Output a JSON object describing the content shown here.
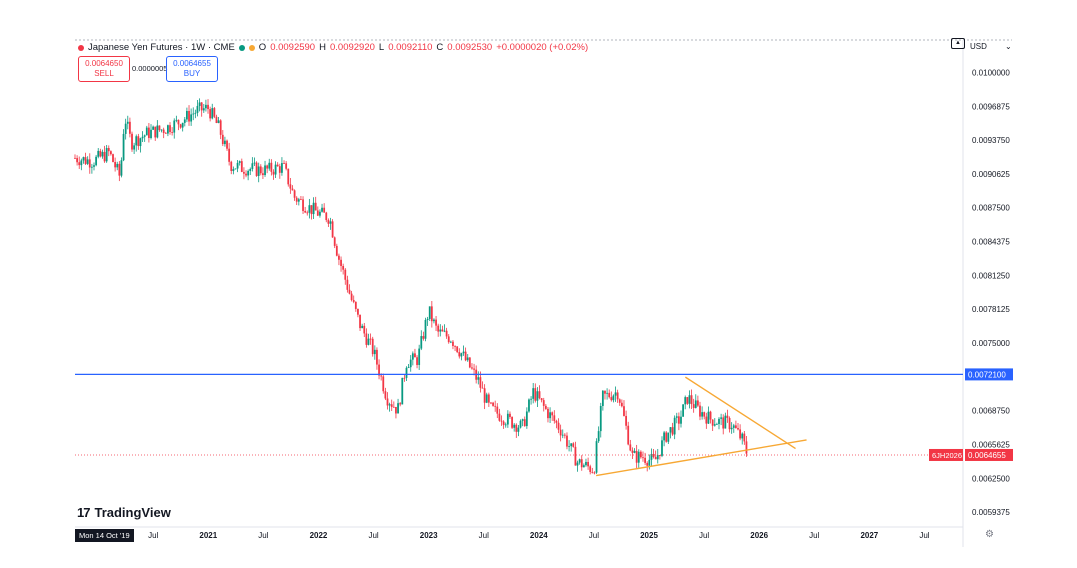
{
  "header": {
    "symbol": "Japanese Yen Futures · 1W · CME",
    "o_label": "O",
    "o": "0.0092590",
    "h_label": "H",
    "h": "0.0092920",
    "l_label": "L",
    "l": "0.0092110",
    "c_label": "C",
    "c": "0.0092530",
    "change": "+0.0000020 (+0.02%)"
  },
  "trade": {
    "sell_price": "0.0064650",
    "sell_label": "SELL",
    "spread": "0.0000005",
    "buy_price": "0.0064655",
    "buy_label": "BUY"
  },
  "currency": "USD",
  "logo_text": "TradingView",
  "date_chip": "Mon 14 Oct '19",
  "colors": {
    "up": "#089981",
    "down": "#f23645",
    "hline": "#2962ff",
    "trend": "#f7a834",
    "bg": "#ffffff"
  },
  "icons": {
    "logo": "tradingview-logo-icon",
    "settings": "gear-icon",
    "collapse": "chevron-icon"
  },
  "chart_data": {
    "type": "candlestick",
    "title": "Japanese Yen Futures · 1W · CME",
    "y_ticks": [
      "0.0100000",
      "0.0096875",
      "0.0093750",
      "0.0090625",
      "0.0087500",
      "0.0084375",
      "0.0081250",
      "0.0078125",
      "0.0075000",
      "0.0068750",
      "0.0065625",
      "0.0062500",
      "0.0059375"
    ],
    "y_tick_values": [
      0.01,
      0.0096875,
      0.009375,
      0.0090625,
      0.00875,
      0.0084375,
      0.008125,
      0.0078125,
      0.0075,
      0.006875,
      0.0065625,
      0.00625,
      0.0059375
    ],
    "ylim": [
      0.0058,
      0.0103
    ],
    "x_ticks": [
      "Jul",
      "2021",
      "Jul",
      "2022",
      "Jul",
      "2023",
      "Jul",
      "2024",
      "Jul",
      "2025",
      "Jul",
      "2026",
      "Jul",
      "2027",
      "Jul"
    ],
    "x_tick_dates": [
      2020.5,
      2021.0,
      2021.5,
      2022.0,
      2022.5,
      2023.0,
      2023.5,
      2024.0,
      2024.5,
      2025.0,
      2025.5,
      2026.0,
      2026.5,
      2027.0,
      2027.5
    ],
    "xlim": [
      2019.79,
      2027.85
    ],
    "price_path": [
      [
        2019.79,
        0.00921
      ],
      [
        2019.95,
        0.00918
      ],
      [
        2020.1,
        0.00926
      ],
      [
        2020.2,
        0.00903
      ],
      [
        2020.24,
        0.0096
      ],
      [
        2020.3,
        0.00935
      ],
      [
        2020.45,
        0.00944
      ],
      [
        2020.6,
        0.00948
      ],
      [
        2020.75,
        0.00955
      ],
      [
        2020.9,
        0.00965
      ],
      [
        2021.0,
        0.00967
      ],
      [
        2021.1,
        0.00948
      ],
      [
        2021.2,
        0.00915
      ],
      [
        2021.3,
        0.00912
      ],
      [
        2021.45,
        0.0091
      ],
      [
        2021.55,
        0.0091
      ],
      [
        2021.68,
        0.00913
      ],
      [
        2021.78,
        0.00885
      ],
      [
        2021.9,
        0.00876
      ],
      [
        2022.0,
        0.0087
      ],
      [
        2022.1,
        0.00866
      ],
      [
        2022.18,
        0.0083
      ],
      [
        2022.3,
        0.0079
      ],
      [
        2022.38,
        0.00766
      ],
      [
        2022.5,
        0.00742
      ],
      [
        2022.62,
        0.007
      ],
      [
        2022.72,
        0.00688
      ],
      [
        2022.8,
        0.00733
      ],
      [
        2022.9,
        0.00735
      ],
      [
        2023.0,
        0.0078
      ],
      [
        2023.08,
        0.0076
      ],
      [
        2023.2,
        0.00755
      ],
      [
        2023.3,
        0.0074
      ],
      [
        2023.45,
        0.00715
      ],
      [
        2023.55,
        0.0069
      ],
      [
        2023.7,
        0.0068
      ],
      [
        2023.85,
        0.00672
      ],
      [
        2023.95,
        0.00705
      ],
      [
        2024.05,
        0.0069
      ],
      [
        2024.2,
        0.0067
      ],
      [
        2024.35,
        0.0064
      ],
      [
        2024.5,
        0.00633
      ],
      [
        2024.58,
        0.007
      ],
      [
        2024.72,
        0.00705
      ],
      [
        2024.85,
        0.00645
      ],
      [
        2024.95,
        0.00645
      ],
      [
        2025.05,
        0.0064
      ],
      [
        2025.15,
        0.00664
      ],
      [
        2025.28,
        0.0068
      ],
      [
        2025.35,
        0.007
      ],
      [
        2025.45,
        0.00688
      ],
      [
        2025.55,
        0.0068
      ],
      [
        2025.65,
        0.00677
      ],
      [
        2025.75,
        0.00675
      ],
      [
        2025.85,
        0.0066
      ],
      [
        2025.9,
        0.00645
      ]
    ],
    "annotations": {
      "horizontal_line": {
        "value": 0.00721,
        "label": "0.0072100"
      },
      "current_price": {
        "value": 0.0064655,
        "label": "0.0064655",
        "symbol": "6JH2026"
      },
      "trendline_support": {
        "from": [
          2024.52,
          0.006275
        ],
        "to": [
          2026.43,
          0.006605
        ]
      },
      "trendline_resistance": {
        "from": [
          2025.33,
          0.007185
        ],
        "to": [
          2026.33,
          0.006525
        ]
      }
    }
  }
}
